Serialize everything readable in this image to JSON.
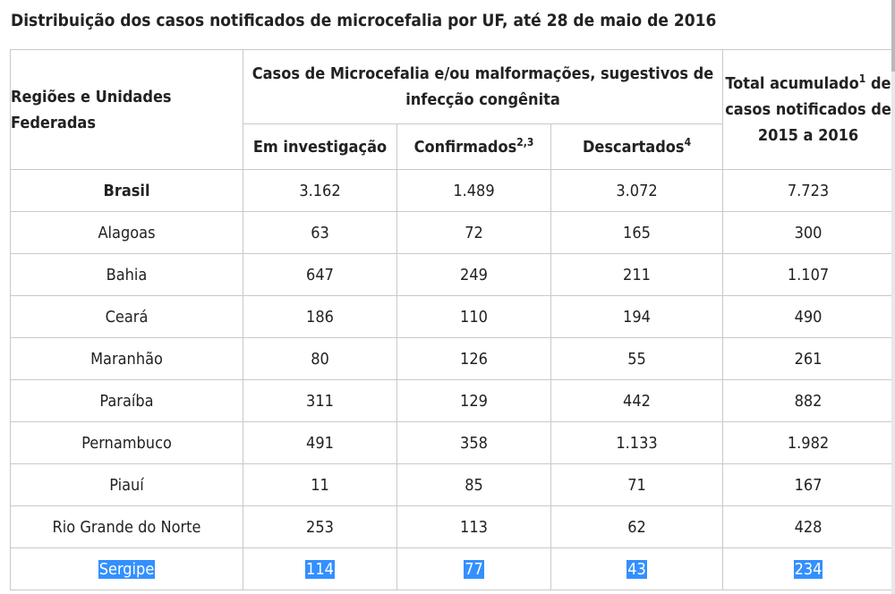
{
  "title": "Distribuição dos casos notificados de microcefalia por UF, até 28 de maio de 2016",
  "header": {
    "region": "Regiões e Unidades Federadas",
    "group": "Casos de Microcefalia e/ou malformações, sugestivos de infecção congênita",
    "col_investigacao": "Em investigação",
    "col_confirmados": "Confirmados",
    "col_confirmados_sup": "2,3",
    "col_descartados": "Descartados",
    "col_descartados_sup": "4",
    "col_total_a": "Total acumulado",
    "col_total_sup": "1",
    "col_total_b": "de casos notificados de 2015 a 2016"
  },
  "rows": [
    {
      "name": "Brasil",
      "investigacao": "3.162",
      "confirmados": "1.489",
      "descartados": "3.072",
      "total": "7.723"
    },
    {
      "name": "Alagoas",
      "investigacao": "63",
      "confirmados": "72",
      "descartados": "165",
      "total": "300"
    },
    {
      "name": "Bahia",
      "investigacao": "647",
      "confirmados": "249",
      "descartados": "211",
      "total": "1.107"
    },
    {
      "name": "Ceará",
      "investigacao": "186",
      "confirmados": "110",
      "descartados": "194",
      "total": "490"
    },
    {
      "name": "Maranhão",
      "investigacao": "80",
      "confirmados": "126",
      "descartados": "55",
      "total": "261"
    },
    {
      "name": "Paraíba",
      "investigacao": "311",
      "confirmados": "129",
      "descartados": "442",
      "total": "882"
    },
    {
      "name": "Pernambuco",
      "investigacao": "491",
      "confirmados": "358",
      "descartados": "1.133",
      "total": "1.982"
    },
    {
      "name": "Piauí",
      "investigacao": "11",
      "confirmados": "85",
      "descartados": "71",
      "total": "167"
    },
    {
      "name": "Rio Grande do Norte",
      "investigacao": "253",
      "confirmados": "113",
      "descartados": "62",
      "total": "428"
    },
    {
      "name": "Sergipe",
      "investigacao": "114",
      "confirmados": "77",
      "descartados": "43",
      "total": "234"
    }
  ],
  "selection_color": "#3390ff"
}
